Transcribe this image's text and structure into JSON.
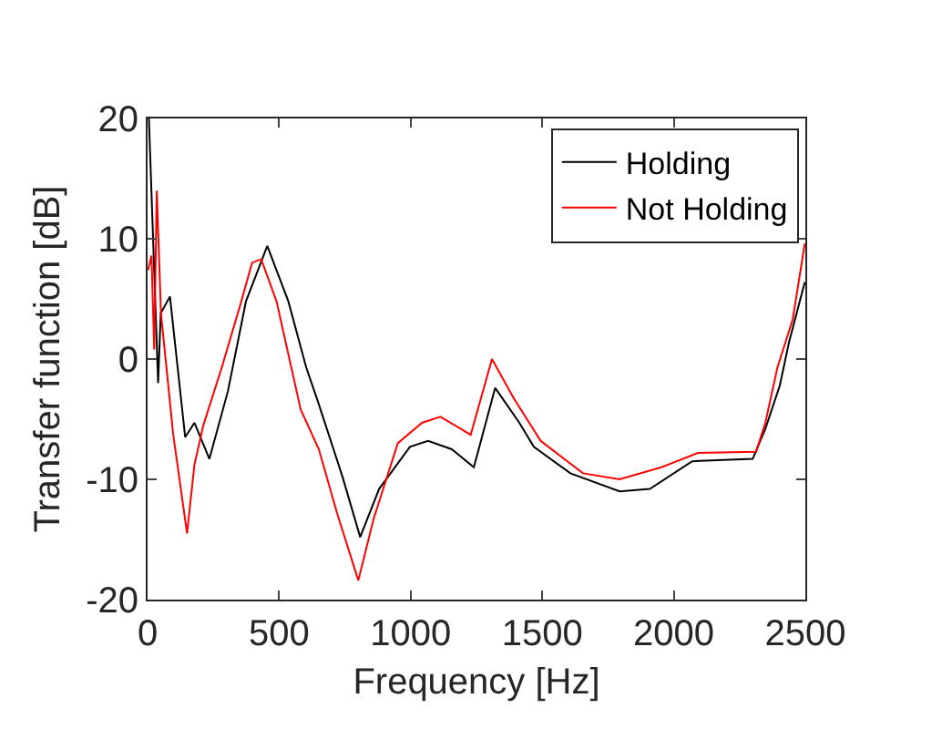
{
  "chart_data": {
    "type": "line",
    "xlabel": "Frequency [Hz]",
    "ylabel": "Transfer function [dB]",
    "xlim": [
      0,
      2500
    ],
    "xticks": [
      0,
      500,
      1000,
      1500,
      2000,
      2500
    ],
    "ylim": [
      -20,
      20
    ],
    "yticks": [
      -20,
      -10,
      0,
      10,
      20
    ],
    "grid": false,
    "legend": "top right",
    "line_style": "solid",
    "marker": "none",
    "series": [
      {
        "name": "Holding",
        "color": "#000000",
        "x": [
          5,
          40,
          50,
          85,
          143,
          178,
          235,
          305,
          374,
          455,
          535,
          603,
          650,
          741,
          808,
          880,
          997,
          1066,
          1156,
          1240,
          1321,
          1413,
          1468,
          1607,
          1794,
          1909,
          2070,
          2300,
          2348,
          2403,
          2438,
          2498
        ],
        "values": [
          20,
          -2,
          3.8,
          5.2,
          -6.5,
          -5.3,
          -8.3,
          -2.7,
          4.8,
          9.4,
          4.8,
          -0.7,
          -3.7,
          -9.8,
          -14.8,
          -10.8,
          -7.3,
          -6.8,
          -7.5,
          -9,
          -2.4,
          -5.3,
          -7.3,
          -9.5,
          -11,
          -10.8,
          -8.5,
          -8.3,
          -5.8,
          -2.2,
          1.4,
          6.4
        ]
      },
      {
        "name": "Not Holding",
        "color": "#ff0000",
        "x": [
          2,
          15,
          25,
          35,
          51,
          97,
          150,
          178,
          212,
          282,
          351,
          397,
          432,
          490,
          582,
          651,
          720,
          801,
          859,
          951,
          1043,
          1113,
          1228,
          1309,
          1390,
          1494,
          1655,
          1794,
          1953,
          2092,
          2313,
          2348,
          2394,
          2452,
          2498
        ],
        "values": [
          7.4,
          8.6,
          0.8,
          14,
          3.8,
          -6.2,
          -14.5,
          -8.8,
          -5.5,
          -0.7,
          4.4,
          8,
          8.3,
          4.8,
          -4.2,
          -7.5,
          -12.8,
          -18.4,
          -13.3,
          -7,
          -5.3,
          -4.8,
          -6.3,
          0,
          -3.2,
          -6.8,
          -9.5,
          -10,
          -9,
          -7.8,
          -7.7,
          -5.3,
          -0.7,
          3.3,
          9.6
        ]
      }
    ]
  }
}
